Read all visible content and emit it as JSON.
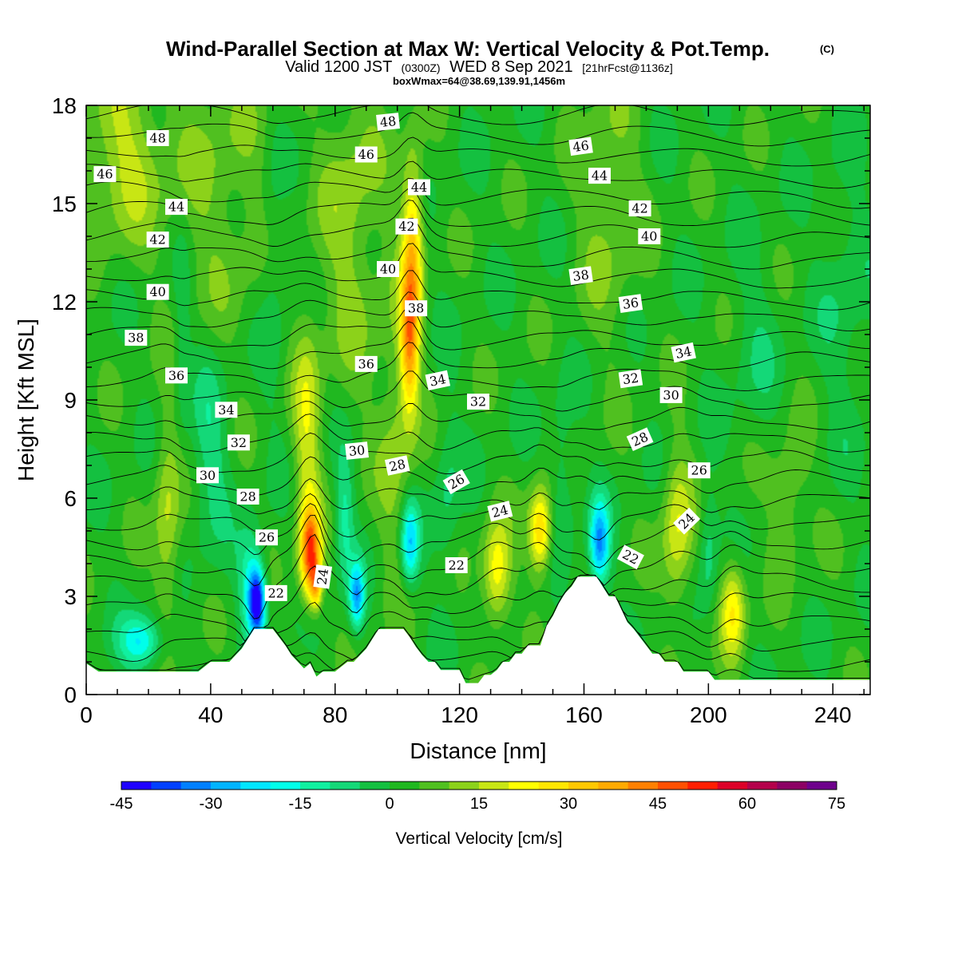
{
  "title": {
    "main": "Wind-Parallel Section at Max W: Vertical Velocity & Pot.Temp.",
    "copyright": "(C)",
    "valid_prefix": "Valid 1200 JST",
    "valid_utc": "(0300Z)",
    "valid_date": "WED 8 Sep 2021",
    "forecast": "[21hrFcst@1136z]",
    "box": "boxWmax=64@38.69,139.91,1456m"
  },
  "colors": {
    "ramp": [
      "#1e00ff",
      "#0040ff",
      "#0080ff",
      "#00b4ff",
      "#00e6ff",
      "#00ffea",
      "#10f0a0",
      "#14d878",
      "#14c040",
      "#20b820",
      "#50c020",
      "#8cd21a",
      "#c8e614",
      "#ffff00",
      "#ffe600",
      "#ffc800",
      "#ffaa00",
      "#ff8000",
      "#ff5000",
      "#ff1e00",
      "#dc0028",
      "#b4004b",
      "#8c0064",
      "#6e008c"
    ],
    "terrain": "#ffffff",
    "contour": "#000000"
  },
  "chart_data": {
    "type": "contour",
    "xlabel": "Distance [nm]",
    "ylabel": "Height [Kft MSL]",
    "xlim": [
      0,
      252
    ],
    "ylim": [
      0,
      18
    ],
    "x_ticks": [
      0,
      40,
      80,
      120,
      160,
      200,
      240
    ],
    "y_ticks": [
      0,
      3,
      6,
      9,
      12,
      15,
      18
    ],
    "colorbar": {
      "label": "Vertical Velocity [cm/s]",
      "min": -45,
      "max": 75,
      "step": 5,
      "tick_values": [
        -45,
        -30,
        -15,
        0,
        15,
        30,
        45,
        60,
        75
      ]
    },
    "terrain_kft": [
      [
        0,
        0.95
      ],
      [
        4,
        0.7
      ],
      [
        8,
        0.7
      ],
      [
        12,
        0.7
      ],
      [
        16,
        0.7
      ],
      [
        20,
        0.7
      ],
      [
        24,
        0.7
      ],
      [
        28,
        0.7
      ],
      [
        32,
        0.7
      ],
      [
        36,
        0.7
      ],
      [
        40,
        1.0
      ],
      [
        44,
        1.0
      ],
      [
        46,
        1.0
      ],
      [
        48,
        1.2
      ],
      [
        50,
        1.4
      ],
      [
        52,
        1.7
      ],
      [
        54,
        2.0
      ],
      [
        56,
        2.0
      ],
      [
        58,
        2.0
      ],
      [
        60,
        2.0
      ],
      [
        62,
        1.75
      ],
      [
        64,
        1.5
      ],
      [
        66,
        1.2
      ],
      [
        68,
        1.0
      ],
      [
        70,
        0.8
      ],
      [
        72,
        0.95
      ],
      [
        74,
        0.55
      ],
      [
        76,
        0.7
      ],
      [
        78,
        0.7
      ],
      [
        80,
        0.7
      ],
      [
        84,
        1.0
      ],
      [
        86,
        1.0
      ],
      [
        88,
        1.2
      ],
      [
        90,
        1.4
      ],
      [
        92,
        1.7
      ],
      [
        94,
        2.0
      ],
      [
        96,
        2.0
      ],
      [
        98,
        2.0
      ],
      [
        100,
        2.0
      ],
      [
        102,
        2.0
      ],
      [
        104,
        1.75
      ],
      [
        106,
        1.45
      ],
      [
        108,
        1.2
      ],
      [
        110,
        1.0
      ],
      [
        112,
        1.0
      ],
      [
        114,
        0.75
      ],
      [
        116,
        0.75
      ],
      [
        118,
        0.75
      ],
      [
        120,
        0.75
      ],
      [
        122,
        0.35
      ],
      [
        124,
        0.35
      ],
      [
        126,
        0.35
      ],
      [
        128,
        0.6
      ],
      [
        130,
        0.6
      ],
      [
        132,
        0.75
      ],
      [
        134,
        1.0
      ],
      [
        136,
        1.0
      ],
      [
        138,
        1.25
      ],
      [
        140,
        1.25
      ],
      [
        142,
        1.5
      ],
      [
        144,
        1.5
      ],
      [
        146,
        1.5
      ],
      [
        148,
        2.1
      ],
      [
        150,
        2.4
      ],
      [
        152,
        2.8
      ],
      [
        154,
        3.1
      ],
      [
        156,
        3.3
      ],
      [
        158,
        3.6
      ],
      [
        160,
        3.6
      ],
      [
        162,
        3.6
      ],
      [
        164,
        3.6
      ],
      [
        166,
        3.3
      ],
      [
        168,
        3.0
      ],
      [
        170,
        3.0
      ],
      [
        172,
        2.6
      ],
      [
        174,
        2.2
      ],
      [
        176,
        2.0
      ],
      [
        178,
        1.75
      ],
      [
        180,
        1.5
      ],
      [
        182,
        1.25
      ],
      [
        184,
        1.25
      ],
      [
        186,
        1.0
      ],
      [
        188,
        1.0
      ],
      [
        190,
        1.0
      ],
      [
        192,
        0.7
      ],
      [
        196,
        0.7
      ],
      [
        200,
        0.7
      ],
      [
        202,
        0.45
      ],
      [
        206,
        0.45
      ],
      [
        210,
        0.45
      ],
      [
        216,
        0.45
      ],
      [
        220,
        0.45
      ],
      [
        230,
        0.45
      ],
      [
        240,
        0.45
      ],
      [
        252,
        0.45
      ]
    ],
    "w_cells_cm_s": [
      {
        "x": 72,
        "y": 4.3,
        "sx": 3.2,
        "sy": 1.4,
        "a": 45
      },
      {
        "x": 74,
        "y": 3.3,
        "sx": 1.8,
        "sy": 0.7,
        "a": 22
      },
      {
        "x": 71,
        "y": 8.0,
        "sx": 4.5,
        "sy": 3.5,
        "a": 16
      },
      {
        "x": 104,
        "y": 10.8,
        "sx": 3.0,
        "sy": 2.2,
        "a": 32
      },
      {
        "x": 105,
        "y": 14.0,
        "sx": 3.4,
        "sy": 2.6,
        "a": 26
      },
      {
        "x": 100,
        "y": 8.0,
        "sx": 6.0,
        "sy": 5.0,
        "a": 10
      },
      {
        "x": 146,
        "y": 5.0,
        "sx": 3.6,
        "sy": 1.3,
        "a": 30
      },
      {
        "x": 132,
        "y": 3.7,
        "sx": 4.5,
        "sy": 1.6,
        "a": 23
      },
      {
        "x": 208,
        "y": 2.6,
        "sx": 4.0,
        "sy": 1.5,
        "a": 22
      },
      {
        "x": 190,
        "y": 5.0,
        "sx": 4.8,
        "sy": 2.4,
        "a": 18
      },
      {
        "x": 26,
        "y": 5.2,
        "sx": 4.2,
        "sy": 3.2,
        "a": 14
      },
      {
        "x": 12,
        "y": 16.5,
        "sx": 14.0,
        "sy": 2.8,
        "a": 14
      },
      {
        "x": 44,
        "y": 15.5,
        "sx": 16.0,
        "sy": 4.5,
        "a": 8
      },
      {
        "x": 85,
        "y": 14.5,
        "sx": 10.0,
        "sy": 5.0,
        "a": 11
      },
      {
        "x": 168,
        "y": 15.0,
        "sx": 10.0,
        "sy": 4.0,
        "a": 9
      },
      {
        "x": 226,
        "y": 6.0,
        "sx": 7.0,
        "sy": 2.0,
        "a": 9
      },
      {
        "x": 55,
        "y": 2.8,
        "sx": 2.6,
        "sy": 1.0,
        "a": -42
      },
      {
        "x": 53,
        "y": 3.4,
        "sx": 4.0,
        "sy": 1.6,
        "a": -18
      },
      {
        "x": 87,
        "y": 3.0,
        "sx": 2.4,
        "sy": 1.0,
        "a": -30
      },
      {
        "x": 104,
        "y": 4.6,
        "sx": 3.0,
        "sy": 1.3,
        "a": -28
      },
      {
        "x": 165,
        "y": 4.6,
        "sx": 3.2,
        "sy": 1.3,
        "a": -32
      },
      {
        "x": 18,
        "y": 1.6,
        "sx": 7.0,
        "sy": 0.8,
        "a": -22
      },
      {
        "x": 83,
        "y": 5.4,
        "sx": 3.0,
        "sy": 2.0,
        "a": -14
      },
      {
        "x": 116,
        "y": 6.0,
        "sx": 4.0,
        "sy": 2.5,
        "a": -8
      },
      {
        "x": 40,
        "y": 7.5,
        "sx": 6.0,
        "sy": 3.0,
        "a": -10
      },
      {
        "x": 153,
        "y": 6.5,
        "sx": 4.0,
        "sy": 2.5,
        "a": -8
      },
      {
        "x": 200,
        "y": 4.5,
        "sx": 3.0,
        "sy": 2.0,
        "a": -10
      },
      {
        "x": 60,
        "y": 13.0,
        "sx": 4.0,
        "sy": 4.0,
        "a": -6
      },
      {
        "x": 31,
        "y": 11.0,
        "sx": 2.5,
        "sy": 3.0,
        "a": -7
      },
      {
        "x": 244,
        "y": 12.0,
        "sx": 8.0,
        "sy": 4.0,
        "a": -6
      },
      {
        "x": 215,
        "y": 10.5,
        "sx": 8.0,
        "sy": 3.0,
        "a": -5
      }
    ],
    "theta_contours": {
      "first": 21,
      "last": 49,
      "labels": [
        {
          "text": "48",
          "x": 23,
          "y": 17.0,
          "rot": 0
        },
        {
          "text": "46",
          "x": 6,
          "y": 15.9,
          "rot": 0
        },
        {
          "text": "44",
          "x": 29,
          "y": 14.9,
          "rot": 0
        },
        {
          "text": "42",
          "x": 23,
          "y": 13.9,
          "rot": 0
        },
        {
          "text": "40",
          "x": 23,
          "y": 12.3,
          "rot": 0
        },
        {
          "text": "38",
          "x": 16,
          "y": 10.9,
          "rot": 0
        },
        {
          "text": "36",
          "x": 29,
          "y": 9.75,
          "rot": 0
        },
        {
          "text": "34",
          "x": 45,
          "y": 8.7,
          "rot": 0
        },
        {
          "text": "32",
          "x": 49,
          "y": 7.7,
          "rot": 0
        },
        {
          "text": "30",
          "x": 39,
          "y": 6.7,
          "rot": 0
        },
        {
          "text": "28",
          "x": 52,
          "y": 6.05,
          "rot": 0
        },
        {
          "text": "26",
          "x": 58,
          "y": 4.8,
          "rot": 0
        },
        {
          "text": "22",
          "x": 61,
          "y": 3.1,
          "rot": 0
        },
        {
          "text": "24",
          "x": 76,
          "y": 3.6,
          "rot": -82
        },
        {
          "text": "48",
          "x": 97,
          "y": 17.5,
          "rot": -6
        },
        {
          "text": "46",
          "x": 90,
          "y": 16.5,
          "rot": 0
        },
        {
          "text": "44",
          "x": 107,
          "y": 15.5,
          "rot": 0
        },
        {
          "text": "42",
          "x": 103,
          "y": 14.3,
          "rot": 0
        },
        {
          "text": "40",
          "x": 97,
          "y": 13.0,
          "rot": 0
        },
        {
          "text": "38",
          "x": 106,
          "y": 11.8,
          "rot": 0
        },
        {
          "text": "36",
          "x": 90,
          "y": 10.1,
          "rot": 0
        },
        {
          "text": "34",
          "x": 113,
          "y": 9.6,
          "rot": -12
        },
        {
          "text": "32",
          "x": 126,
          "y": 8.95,
          "rot": 0
        },
        {
          "text": "30",
          "x": 87,
          "y": 7.45,
          "rot": -6
        },
        {
          "text": "28",
          "x": 100,
          "y": 7.0,
          "rot": -12
        },
        {
          "text": "26",
          "x": 119,
          "y": 6.5,
          "rot": -30
        },
        {
          "text": "24",
          "x": 133,
          "y": 5.6,
          "rot": -14
        },
        {
          "text": "22",
          "x": 119,
          "y": 3.95,
          "rot": 0
        },
        {
          "text": "46",
          "x": 159,
          "y": 16.75,
          "rot": -8
        },
        {
          "text": "44",
          "x": 165,
          "y": 15.85,
          "rot": 0
        },
        {
          "text": "42",
          "x": 178,
          "y": 14.85,
          "rot": 0
        },
        {
          "text": "40",
          "x": 181,
          "y": 14.0,
          "rot": 0
        },
        {
          "text": "38",
          "x": 159,
          "y": 12.8,
          "rot": -8
        },
        {
          "text": "36",
          "x": 175,
          "y": 11.95,
          "rot": -8
        },
        {
          "text": "34",
          "x": 192,
          "y": 10.45,
          "rot": -12
        },
        {
          "text": "32",
          "x": 175,
          "y": 9.65,
          "rot": -8
        },
        {
          "text": "30",
          "x": 188,
          "y": 9.15,
          "rot": 0
        },
        {
          "text": "28",
          "x": 178,
          "y": 7.8,
          "rot": -24
        },
        {
          "text": "26",
          "x": 197,
          "y": 6.85,
          "rot": 0
        },
        {
          "text": "24",
          "x": 193,
          "y": 5.3,
          "rot": -44
        },
        {
          "text": "22",
          "x": 175,
          "y": 4.2,
          "rot": 28
        }
      ]
    }
  }
}
